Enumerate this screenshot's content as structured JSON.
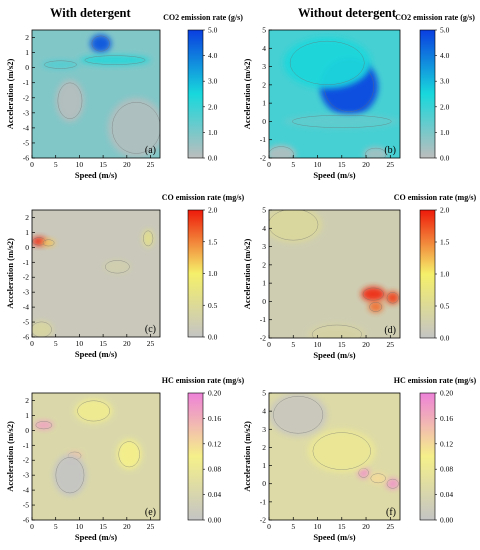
{
  "figure": {
    "col_titles": [
      "With detergent",
      "Without detergent"
    ]
  },
  "chart_data": [
    {
      "type": "heatmap",
      "id": "a",
      "panel_label": "(a)",
      "colorbar_title": "CO2 emission rate (g/s)",
      "xlabel": "Speed (m/s)",
      "ylabel": "Acceleration (m/s2)",
      "xlim": [
        0,
        27
      ],
      "ylim": [
        -6,
        2.5
      ],
      "xticks": [
        0,
        5,
        10,
        15,
        20,
        25
      ],
      "yticks": [
        -6,
        -5,
        -4,
        -3,
        -2,
        -1,
        0,
        1,
        2
      ],
      "colorbar_ticks": [
        "0.0",
        "1.0",
        "2.0",
        "3.0",
        "4.0",
        "5.0"
      ],
      "colorbar_range": [
        0,
        5
      ],
      "colors": [
        "#bdbdbd",
        "#18d8dc",
        "#0a3ee0"
      ],
      "background_level": 0.9,
      "hotspots": [
        {
          "x": 14.5,
          "y": 1.6,
          "rx": 2.2,
          "ry": 0.6,
          "level": 4.6
        },
        {
          "x": 17.5,
          "y": 0.5,
          "rx": 7.5,
          "ry": 0.35,
          "level": 2.2
        },
        {
          "x": 6.0,
          "y": 0.2,
          "rx": 4.0,
          "ry": 0.3,
          "level": 1.6
        },
        {
          "x": 8.0,
          "y": -2.2,
          "rx": 3.0,
          "ry": 1.4,
          "level": 0.1
        },
        {
          "x": 22.0,
          "y": -4.0,
          "rx": 6.0,
          "ry": 2.0,
          "level": 0.2
        }
      ]
    },
    {
      "type": "heatmap",
      "id": "b",
      "panel_label": "(b)",
      "colorbar_title": "CO2 emission rate (g/s)",
      "xlabel": "Speed (m/s)",
      "ylabel": "Acceleration (m/s2)",
      "xlim": [
        0,
        27
      ],
      "ylim": [
        -2,
        5
      ],
      "xticks": [
        0,
        5,
        10,
        15,
        20,
        25
      ],
      "yticks": [
        -2,
        -1,
        0,
        1,
        2,
        3,
        4,
        5
      ],
      "colorbar_ticks": [
        "0.0",
        "1.0",
        "2.0",
        "3.0",
        "4.0",
        "5.0"
      ],
      "colorbar_range": [
        0,
        5
      ],
      "colors": [
        "#bdbdbd",
        "#18d8dc",
        "#0a3ee0"
      ],
      "background_level": 1.8,
      "hotspots": [
        {
          "x": 16.5,
          "y": 1.9,
          "rx": 6.0,
          "ry": 1.6,
          "level": 4.8
        },
        {
          "x": 12.0,
          "y": 3.2,
          "rx": 9.0,
          "ry": 1.4,
          "level": 2.4
        },
        {
          "x": 15.0,
          "y": 0.0,
          "rx": 12.0,
          "ry": 0.4,
          "level": 1.4
        },
        {
          "x": 2.5,
          "y": -1.8,
          "rx": 3.0,
          "ry": 0.5,
          "level": 0.2
        },
        {
          "x": 22.0,
          "y": -1.8,
          "rx": 2.5,
          "ry": 0.4,
          "level": 0.4
        }
      ]
    },
    {
      "type": "heatmap",
      "id": "c",
      "panel_label": "(c)",
      "colorbar_title": "CO emission rate (mg/s)",
      "xlabel": "Speed (m/s)",
      "ylabel": "Acceleration (m/s2)",
      "xlim": [
        0,
        27
      ],
      "ylim": [
        -6,
        2.5
      ],
      "xticks": [
        0,
        5,
        10,
        15,
        20,
        25
      ],
      "yticks": [
        -6,
        -5,
        -4,
        -3,
        -2,
        -1,
        0,
        1,
        2
      ],
      "colorbar_ticks": [
        "0.0",
        "0.5",
        "1.0",
        "1.5",
        "2.0"
      ],
      "colorbar_range": [
        0,
        2
      ],
      "colors": [
        "#c4c4c4",
        "#f5f06a",
        "#ee1a0a"
      ],
      "background_level": 0.1,
      "hotspots": [
        {
          "x": 1.5,
          "y": 0.4,
          "rx": 1.6,
          "ry": 0.3,
          "level": 1.9
        },
        {
          "x": 3.5,
          "y": 0.3,
          "rx": 1.4,
          "ry": 0.25,
          "level": 1.2
        },
        {
          "x": 24.5,
          "y": 0.6,
          "rx": 1.2,
          "ry": 0.6,
          "level": 0.6
        },
        {
          "x": 2.0,
          "y": -5.5,
          "rx": 2.5,
          "ry": 0.6,
          "level": 0.4
        },
        {
          "x": 18.0,
          "y": -1.3,
          "rx": 3.0,
          "ry": 0.5,
          "level": 0.25
        }
      ]
    },
    {
      "type": "heatmap",
      "id": "d",
      "panel_label": "(d)",
      "colorbar_title": "CO emission rate (mg/s)",
      "xlabel": "Speed (m/s)",
      "ylabel": "Acceleration (m/s2)",
      "xlim": [
        0,
        27
      ],
      "ylim": [
        -2,
        5
      ],
      "xticks": [
        0,
        5,
        10,
        15,
        20,
        25
      ],
      "yticks": [
        -2,
        -1,
        0,
        1,
        2,
        3,
        4,
        5
      ],
      "colorbar_ticks": [
        "0.0",
        "0.5",
        "1.0",
        "1.5",
        "2.0"
      ],
      "colorbar_range": [
        0,
        2
      ],
      "colors": [
        "#c4c4c4",
        "#f5f06a",
        "#ee1a0a"
      ],
      "background_level": 0.2,
      "hotspots": [
        {
          "x": 21.5,
          "y": 0.4,
          "rx": 2.5,
          "ry": 0.4,
          "level": 1.9
        },
        {
          "x": 25.5,
          "y": 0.2,
          "rx": 1.4,
          "ry": 0.35,
          "level": 1.8
        },
        {
          "x": 22.0,
          "y": -0.3,
          "rx": 1.5,
          "ry": 0.3,
          "level": 1.6
        },
        {
          "x": 5.0,
          "y": 4.2,
          "rx": 6.0,
          "ry": 1.0,
          "level": 0.45
        },
        {
          "x": 14.0,
          "y": -1.8,
          "rx": 6.0,
          "ry": 0.6,
          "level": 0.35
        }
      ]
    },
    {
      "type": "heatmap",
      "id": "e",
      "panel_label": "(e)",
      "colorbar_title": "HC emission rate (mg/s)",
      "xlabel": "Speed (m/s)",
      "ylabel": "Acceleration (m/s2)",
      "xlim": [
        0,
        27
      ],
      "ylim": [
        -6,
        2.5
      ],
      "xticks": [
        0,
        5,
        10,
        15,
        20,
        25
      ],
      "yticks": [
        -6,
        -5,
        -4,
        -3,
        -2,
        -1,
        0,
        1,
        2
      ],
      "colorbar_ticks": [
        "0.00",
        "0.04",
        "0.08",
        "0.12",
        "0.16",
        "0.20"
      ],
      "colorbar_range": [
        0,
        0.2
      ],
      "colors": [
        "#c4c4c4",
        "#f5f08a",
        "#ee82d8"
      ],
      "background_level": 0.045,
      "hotspots": [
        {
          "x": 2.5,
          "y": 0.35,
          "rx": 2.0,
          "ry": 0.3,
          "level": 0.17
        },
        {
          "x": 9.0,
          "y": -1.7,
          "rx": 1.6,
          "ry": 0.3,
          "level": 0.14
        },
        {
          "x": 20.5,
          "y": -1.6,
          "rx": 2.6,
          "ry": 1.0,
          "level": 0.1
        },
        {
          "x": 13.0,
          "y": 1.3,
          "rx": 4.0,
          "ry": 0.8,
          "level": 0.09
        },
        {
          "x": 8.0,
          "y": -3.0,
          "rx": 3.5,
          "ry": 1.4,
          "level": 0.0
        }
      ]
    },
    {
      "type": "heatmap",
      "id": "f",
      "panel_label": "(f)",
      "colorbar_title": "HC emission rate (mg/s)",
      "xlabel": "Speed (m/s)",
      "ylabel": "Acceleration (m/s2)",
      "xlim": [
        0,
        27
      ],
      "ylim": [
        -2,
        5
      ],
      "xticks": [
        0,
        5,
        10,
        15,
        20,
        25
      ],
      "yticks": [
        -2,
        -1,
        0,
        1,
        2,
        3,
        4,
        5
      ],
      "colorbar_ticks": [
        "0.00",
        "0.04",
        "0.08",
        "0.12",
        "0.16",
        "0.20"
      ],
      "colorbar_range": [
        0,
        0.2
      ],
      "colors": [
        "#c4c4c4",
        "#f5f08a",
        "#ee82d8"
      ],
      "background_level": 0.05,
      "hotspots": [
        {
          "x": 19.5,
          "y": 0.6,
          "rx": 1.2,
          "ry": 0.3,
          "level": 0.18
        },
        {
          "x": 25.5,
          "y": 0.0,
          "rx": 1.4,
          "ry": 0.3,
          "level": 0.18
        },
        {
          "x": 22.5,
          "y": 0.3,
          "rx": 1.8,
          "ry": 0.3,
          "level": 0.12
        },
        {
          "x": 15.0,
          "y": 1.8,
          "rx": 7.0,
          "ry": 1.2,
          "level": 0.08
        },
        {
          "x": 6.0,
          "y": 3.8,
          "rx": 6.0,
          "ry": 1.2,
          "level": 0.01
        }
      ]
    }
  ]
}
